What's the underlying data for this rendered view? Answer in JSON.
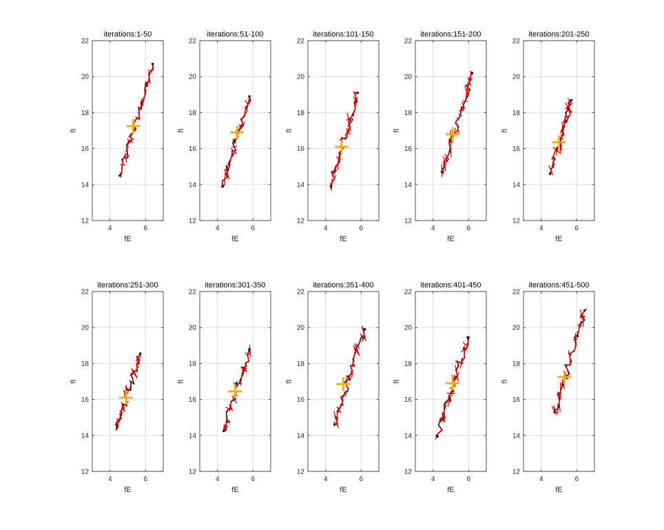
{
  "chart_data": {
    "type": "small-multiples",
    "panel_type": "line",
    "shared_axes": {
      "xlabel": "fE",
      "ylabel": "fI",
      "xlim": [
        3,
        7
      ],
      "ylim": [
        12,
        22
      ],
      "xticks": [
        4,
        6
      ],
      "yticks": [
        12,
        14,
        16,
        18,
        20,
        22
      ],
      "grid": true
    },
    "colors": {
      "trajectory": "#e00000",
      "path_dark": "#1a1a1a",
      "marker": "#edb120",
      "axis": "#262626",
      "grid": "#dcdcdc"
    },
    "panels": [
      {
        "title": "iterations:1-50",
        "start": [
          4.55,
          14.5
        ],
        "end": [
          6.4,
          20.7
        ],
        "center": [
          5.3,
          17.25
        ]
      },
      {
        "title": "iterations:51-100",
        "start": [
          4.3,
          13.9
        ],
        "end": [
          5.8,
          18.9
        ],
        "center": [
          5.1,
          16.9
        ]
      },
      {
        "title": "iterations:101-150",
        "start": [
          4.3,
          13.9
        ],
        "end": [
          5.8,
          19.1
        ],
        "center": [
          4.9,
          16.1
        ]
      },
      {
        "title": "iterations:151-200",
        "start": [
          4.5,
          14.7
        ],
        "end": [
          6.2,
          20.2
        ],
        "center": [
          5.1,
          16.8
        ]
      },
      {
        "title": "iterations:201-250",
        "start": [
          4.5,
          14.6
        ],
        "end": [
          5.7,
          18.7
        ],
        "center": [
          5.0,
          16.35
        ]
      },
      {
        "title": "iterations:251-300",
        "start": [
          4.4,
          14.45
        ],
        "end": [
          5.7,
          18.55
        ],
        "center": [
          4.9,
          16.1
        ]
      },
      {
        "title": "iterations:301-350",
        "start": [
          4.35,
          14.25
        ],
        "end": [
          5.8,
          18.8
        ],
        "center": [
          5.0,
          16.45
        ]
      },
      {
        "title": "iterations:351-400",
        "start": [
          4.5,
          14.6
        ],
        "end": [
          6.2,
          19.9
        ],
        "center": [
          5.0,
          16.85
        ]
      },
      {
        "title": "iterations:401-450",
        "start": [
          4.25,
          13.95
        ],
        "end": [
          5.95,
          19.45
        ],
        "center": [
          5.1,
          16.9
        ]
      },
      {
        "title": "iterations:451-500",
        "start": [
          4.75,
          15.3
        ],
        "end": [
          6.45,
          20.95
        ],
        "center": [
          5.3,
          17.25
        ]
      }
    ]
  }
}
